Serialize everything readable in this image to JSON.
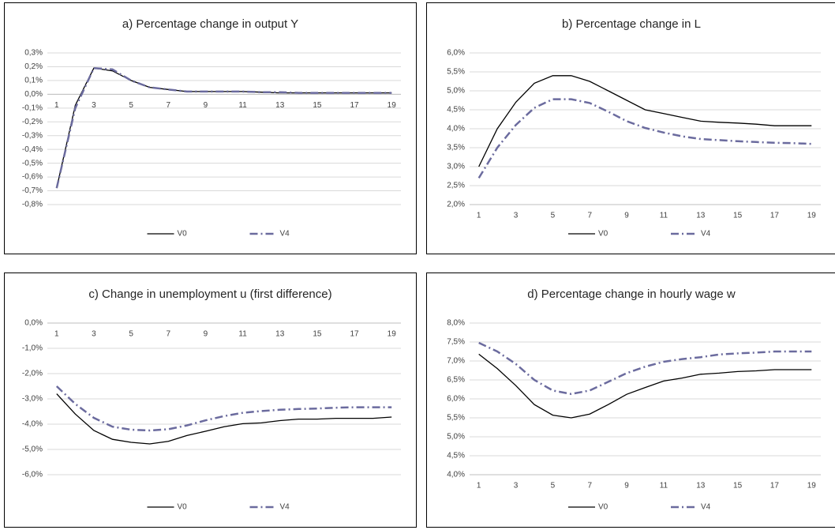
{
  "chart_data": [
    {
      "type": "line",
      "title": "a) Percentage change in output Y",
      "categories": [
        1,
        null,
        3,
        null,
        5,
        null,
        7,
        null,
        9,
        null,
        11,
        null,
        13,
        null,
        15,
        null,
        17,
        null,
        19
      ],
      "ylim": [
        -0.8,
        0.3
      ],
      "yticks": [
        {
          "value": -0.8,
          "label": "-0,8%"
        },
        {
          "value": -0.7,
          "label": "-0,7%"
        },
        {
          "value": -0.6,
          "label": "-0,6%"
        },
        {
          "value": -0.5,
          "label": "-0,5%"
        },
        {
          "value": -0.4,
          "label": "-0,4%"
        },
        {
          "value": -0.3,
          "label": "-0,3%"
        },
        {
          "value": -0.2,
          "label": "-0,2%"
        },
        {
          "value": -0.1,
          "label": "-0,1%"
        },
        {
          "value": 0,
          "label": "0,0%"
        },
        {
          "value": 0.1,
          "label": "0,1%"
        },
        {
          "value": 0.2,
          "label": "0,2%"
        },
        {
          "value": 0.3,
          "label": "0,3%"
        }
      ],
      "grid": true,
      "legend": "bottom",
      "series": [
        {
          "name": "V0",
          "color": "#000000",
          "line_style": "solid",
          "values": [
            -0.68,
            -0.08,
            0.19,
            0.17,
            0.1,
            0.05,
            0.035,
            0.02,
            0.02,
            0.02,
            0.02,
            0.015,
            0.01,
            0.01,
            0.01,
            0.01,
            0.01,
            0.01,
            0.01
          ]
        },
        {
          "name": "V4",
          "color": "#6b6b9e",
          "line_style": "dashdot",
          "values": [
            -0.68,
            -0.1,
            0.19,
            0.18,
            0.1,
            0.05,
            0.035,
            0.02,
            0.02,
            0.02,
            0.02,
            0.015,
            0.015,
            0.01,
            0.01,
            0.01,
            0.01,
            0.01,
            0.01
          ]
        }
      ]
    },
    {
      "type": "line",
      "title": "b) Percentage change in L",
      "categories": [
        1,
        null,
        3,
        null,
        5,
        null,
        7,
        null,
        9,
        null,
        11,
        null,
        13,
        null,
        15,
        null,
        17,
        null,
        19
      ],
      "ylim": [
        2.0,
        6.0
      ],
      "yticks": [
        {
          "value": 2.0,
          "label": "2,0%"
        },
        {
          "value": 2.5,
          "label": "2,5%"
        },
        {
          "value": 3.0,
          "label": "3,0%"
        },
        {
          "value": 3.5,
          "label": "3,5%"
        },
        {
          "value": 4.0,
          "label": "4,0%"
        },
        {
          "value": 4.5,
          "label": "4,5%"
        },
        {
          "value": 5.0,
          "label": "5,0%"
        },
        {
          "value": 5.5,
          "label": "5,5%"
        },
        {
          "value": 6.0,
          "label": "6,0%"
        }
      ],
      "grid": true,
      "legend": "bottom",
      "series": [
        {
          "name": "V0",
          "color": "#000000",
          "line_style": "solid",
          "values": [
            3.0,
            4.0,
            4.7,
            5.2,
            5.4,
            5.4,
            5.25,
            5.0,
            4.75,
            4.5,
            4.4,
            4.3,
            4.2,
            4.17,
            4.15,
            4.12,
            4.08,
            4.08,
            4.08
          ]
        },
        {
          "name": "V4",
          "color": "#6b6b9e",
          "line_style": "dashdot",
          "values": [
            2.7,
            3.5,
            4.1,
            4.55,
            4.78,
            4.78,
            4.68,
            4.45,
            4.2,
            4.02,
            3.9,
            3.8,
            3.73,
            3.7,
            3.67,
            3.65,
            3.63,
            3.62,
            3.6
          ]
        }
      ]
    },
    {
      "type": "line",
      "title": "c) Change in unemployment u (first difference)",
      "categories": [
        1,
        null,
        3,
        null,
        5,
        null,
        7,
        null,
        9,
        null,
        11,
        null,
        13,
        null,
        15,
        null,
        17,
        null,
        19
      ],
      "ylim": [
        -6.0,
        0.0
      ],
      "yticks": [
        {
          "value": -6.0,
          "label": "-6,0%"
        },
        {
          "value": -5.0,
          "label": "-5,0%"
        },
        {
          "value": -4.0,
          "label": "-4,0%"
        },
        {
          "value": -3.0,
          "label": "-3,0%"
        },
        {
          "value": -2.0,
          "label": "-2,0%"
        },
        {
          "value": -1.0,
          "label": "-1,0%"
        },
        {
          "value": 0.0,
          "label": "0,0%"
        }
      ],
      "grid": true,
      "legend": "bottom",
      "series": [
        {
          "name": "V0",
          "color": "#000000",
          "line_style": "solid",
          "values": [
            -2.8,
            -3.6,
            -4.25,
            -4.6,
            -4.72,
            -4.78,
            -4.68,
            -4.45,
            -4.28,
            -4.1,
            -3.98,
            -3.95,
            -3.86,
            -3.8,
            -3.8,
            -3.77,
            -3.77,
            -3.77,
            -3.72
          ]
        },
        {
          "name": "V4",
          "color": "#6b6b9e",
          "line_style": "dashdot",
          "values": [
            -2.5,
            -3.2,
            -3.75,
            -4.1,
            -4.22,
            -4.25,
            -4.2,
            -4.05,
            -3.85,
            -3.68,
            -3.55,
            -3.48,
            -3.43,
            -3.4,
            -3.38,
            -3.35,
            -3.33,
            -3.33,
            -3.33
          ]
        }
      ]
    },
    {
      "type": "line",
      "title": "d) Percentage change in hourly wage w",
      "categories": [
        1,
        null,
        3,
        null,
        5,
        null,
        7,
        null,
        9,
        null,
        11,
        null,
        13,
        null,
        15,
        null,
        17,
        null,
        19
      ],
      "ylim": [
        4.0,
        8.0
      ],
      "yticks": [
        {
          "value": 4.0,
          "label": "4,0%"
        },
        {
          "value": 4.5,
          "label": "4,5%"
        },
        {
          "value": 5.0,
          "label": "5,0%"
        },
        {
          "value": 5.5,
          "label": "5,5%"
        },
        {
          "value": 6.0,
          "label": "6,0%"
        },
        {
          "value": 6.5,
          "label": "6,5%"
        },
        {
          "value": 7.0,
          "label": "7,0%"
        },
        {
          "value": 7.5,
          "label": "7,5%"
        },
        {
          "value": 8.0,
          "label": "8,0%"
        }
      ],
      "grid": true,
      "legend": "bottom",
      "series": [
        {
          "name": "V0",
          "color": "#000000",
          "line_style": "solid",
          "values": [
            7.18,
            6.8,
            6.35,
            5.85,
            5.57,
            5.5,
            5.6,
            5.85,
            6.12,
            6.3,
            6.47,
            6.55,
            6.65,
            6.68,
            6.72,
            6.74,
            6.77,
            6.77,
            6.77
          ]
        },
        {
          "name": "V4",
          "color": "#6b6b9e",
          "line_style": "dashdot",
          "values": [
            7.48,
            7.25,
            6.92,
            6.5,
            6.22,
            6.13,
            6.22,
            6.45,
            6.68,
            6.85,
            6.98,
            7.05,
            7.1,
            7.17,
            7.2,
            7.22,
            7.25,
            7.25,
            7.25
          ]
        }
      ]
    }
  ]
}
